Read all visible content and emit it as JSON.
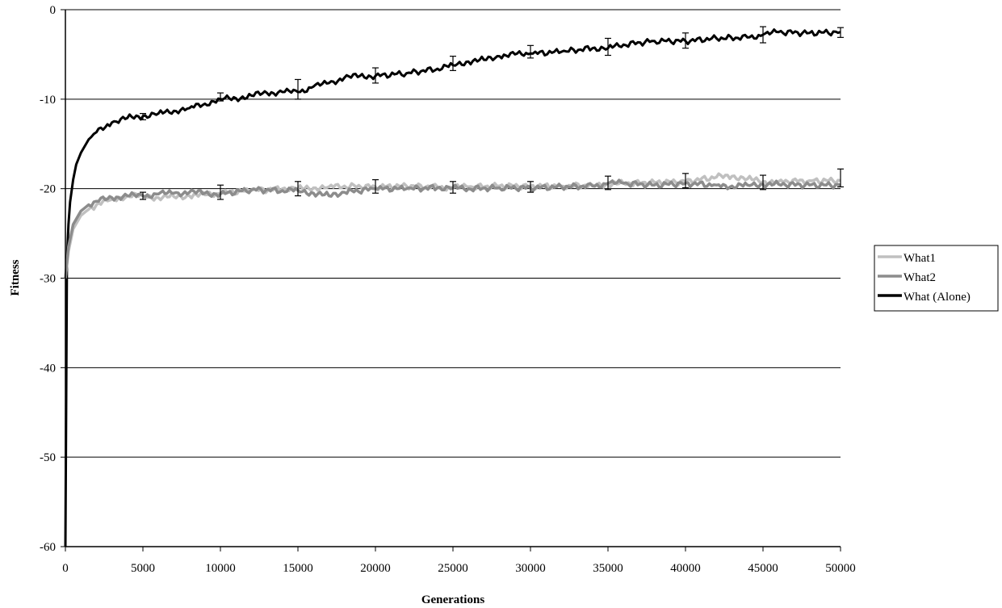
{
  "chart_data": {
    "type": "line",
    "title": "",
    "xlabel": "Generations",
    "ylabel": "Fitness",
    "xlim": [
      0,
      50000
    ],
    "ylim": [
      -60,
      0
    ],
    "x_ticks": [
      0,
      5000,
      10000,
      15000,
      20000,
      25000,
      30000,
      35000,
      40000,
      45000,
      50000
    ],
    "y_ticks": [
      0,
      -10,
      -20,
      -30,
      -40,
      -50,
      -60
    ],
    "grid": "horizontal",
    "legend_position": "right",
    "series": [
      {
        "name": "What1",
        "color": "#c0c0c0",
        "x": [
          0,
          200,
          500,
          1000,
          1500,
          2000,
          3000,
          4000,
          5000,
          6000,
          7000,
          8000,
          9000,
          10000,
          12000,
          14000,
          15000,
          16000,
          17000,
          18000,
          20000,
          22000,
          24000,
          25000,
          26000,
          28000,
          30000,
          32000,
          34000,
          35000,
          36000,
          38000,
          40000,
          42000,
          43000,
          44000,
          45000,
          46000,
          48000,
          50000
        ],
        "y": [
          -30,
          -27,
          -24.5,
          -23,
          -22.3,
          -21.8,
          -21.2,
          -20.8,
          -20.8,
          -21,
          -20.9,
          -20.8,
          -20.7,
          -20.5,
          -20.2,
          -20,
          -20,
          -19.9,
          -19.8,
          -19.7,
          -19.8,
          -19.7,
          -19.8,
          -19.9,
          -19.8,
          -19.7,
          -19.7,
          -19.7,
          -19.6,
          -19.5,
          -19.4,
          -19.3,
          -19.2,
          -18.7,
          -18.6,
          -18.9,
          -19.2,
          -19.2,
          -19.1,
          -19.1
        ],
        "error_bars": [
          {
            "x": 5000,
            "low": -21.2,
            "high": -20.4
          },
          {
            "x": 10000,
            "low": -21.2,
            "high": -19.6
          },
          {
            "x": 15000,
            "low": -20.8,
            "high": -19.2
          },
          {
            "x": 20000,
            "low": -20.5,
            "high": -19.0
          },
          {
            "x": 25000,
            "low": -20.5,
            "high": -19.2
          },
          {
            "x": 30000,
            "low": -20.4,
            "high": -19.2
          },
          {
            "x": 35000,
            "low": -20.1,
            "high": -18.6
          },
          {
            "x": 40000,
            "low": -19.9,
            "high": -18.3
          },
          {
            "x": 45000,
            "low": -20.1,
            "high": -18.5
          },
          {
            "x": 50000,
            "low": -19.8,
            "high": -17.8
          }
        ]
      },
      {
        "name": "What2",
        "color": "#8c8c8c",
        "x": [
          0,
          200,
          500,
          1000,
          1500,
          2000,
          3000,
          4000,
          5000,
          6000,
          7000,
          8000,
          9000,
          10000,
          12000,
          14000,
          15000,
          16000,
          17000,
          18000,
          20000,
          22000,
          24000,
          25000,
          26000,
          28000,
          30000,
          32000,
          34000,
          35000,
          36000,
          38000,
          40000,
          42000,
          43000,
          44000,
          45000,
          46000,
          48000,
          50000
        ],
        "y": [
          -30,
          -26.5,
          -24,
          -22.5,
          -21.8,
          -21.4,
          -21,
          -20.8,
          -20.8,
          -20.6,
          -20.5,
          -20.4,
          -20.5,
          -20.6,
          -20.1,
          -20.2,
          -20.2,
          -20.5,
          -20.8,
          -20.4,
          -20,
          -20,
          -19.9,
          -19.9,
          -20,
          -19.9,
          -19.9,
          -19.8,
          -19.7,
          -19.4,
          -19.4,
          -19.6,
          -19.4,
          -19.6,
          -19.7,
          -19.6,
          -19.5,
          -19.5,
          -19.6,
          -19.6
        ]
      },
      {
        "name": "What (Alone)",
        "color": "#000000",
        "x": [
          0,
          100,
          200,
          300,
          500,
          700,
          1000,
          1500,
          2000,
          3000,
          4000,
          5000,
          6000,
          7000,
          8000,
          9000,
          10000,
          11000,
          12000,
          13000,
          14000,
          15000,
          16000,
          17000,
          18000,
          19000,
          20000,
          22000,
          24000,
          25000,
          26000,
          27000,
          28000,
          29000,
          30000,
          32000,
          34000,
          35000,
          36000,
          38000,
          40000,
          42000,
          44000,
          45000,
          46000,
          48000,
          50000
        ],
        "y": [
          -60,
          -28,
          -24,
          -21.5,
          -19,
          -17.3,
          -16,
          -14.5,
          -13.7,
          -12.6,
          -12.1,
          -11.9,
          -11.6,
          -11.3,
          -11,
          -10.5,
          -10,
          -9.9,
          -9.6,
          -9.3,
          -9.2,
          -9.2,
          -8.6,
          -8.2,
          -7.6,
          -7.4,
          -7.4,
          -7.1,
          -6.6,
          -6.2,
          -5.8,
          -5.6,
          -5.2,
          -5,
          -4.9,
          -4.7,
          -4.3,
          -4.3,
          -3.9,
          -3.5,
          -3.5,
          -3.2,
          -3.1,
          -2.8,
          -2.5,
          -2.6,
          -2.5
        ],
        "error_bars": [
          {
            "x": 5000,
            "low": -12.3,
            "high": -11.6
          },
          {
            "x": 10000,
            "low": -10.2,
            "high": -9.3
          },
          {
            "x": 15000,
            "low": -10.0,
            "high": -7.8
          },
          {
            "x": 20000,
            "low": -8.2,
            "high": -6.5
          },
          {
            "x": 25000,
            "low": -6.8,
            "high": -5.2
          },
          {
            "x": 30000,
            "low": -5.4,
            "high": -4.0
          },
          {
            "x": 35000,
            "low": -5.1,
            "high": -3.2
          },
          {
            "x": 40000,
            "low": -4.3,
            "high": -2.6
          },
          {
            "x": 45000,
            "low": -3.7,
            "high": -1.9
          },
          {
            "x": 50000,
            "low": -3.1,
            "high": -2.0
          }
        ]
      }
    ]
  }
}
